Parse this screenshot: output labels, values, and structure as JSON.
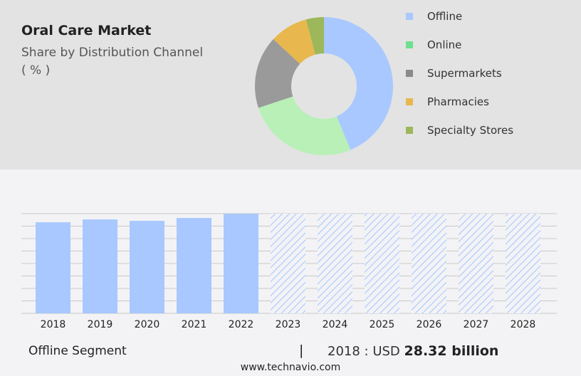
{
  "header": {
    "title": "Oral Care Market",
    "subtitle": "Share by Distribution Channel",
    "unit": "( % )"
  },
  "chart_data": [
    {
      "type": "pie",
      "donut": true,
      "title": "Share by Distribution Channel",
      "legend": "right",
      "categories": [
        "Offline",
        "Online",
        "Supermarkets",
        "Pharmacies",
        "Specialty Stores"
      ],
      "values": [
        43.7,
        26.2,
        17.0,
        8.9,
        4.2
      ],
      "colors": [
        "#a8c8ff",
        "#b8f0b8",
        "#9a9a9a",
        "#e8b84e",
        "#9cb85a"
      ],
      "legend_colors": [
        "#a8c8ff",
        "#6ee08e",
        "#8a8a8a",
        "#e8b84e",
        "#9cb85a"
      ]
    },
    {
      "type": "bar",
      "categories": [
        "2018",
        "2019",
        "2020",
        "2021",
        "2022",
        "2023",
        "2024",
        "2025",
        "2026",
        "2027",
        "2028"
      ],
      "values": [
        28.32,
        29.2,
        28.76,
        29.65,
        30.97,
        null,
        null,
        null,
        null,
        null,
        null
      ],
      "forecast": [
        "2023",
        "2024",
        "2025",
        "2026",
        "2027",
        "2028"
      ],
      "color": "#a8c8ff",
      "grid": true,
      "ylim": [
        0,
        31
      ]
    }
  ],
  "footer": {
    "segment": "Offline Segment",
    "separator": "|",
    "year_label": "2018 : USD",
    "value": "28.32 billion",
    "site": "www.technavio.com"
  }
}
